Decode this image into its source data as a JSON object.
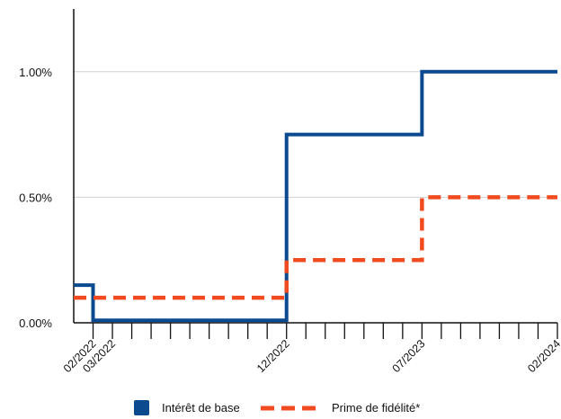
{
  "chart_data": {
    "type": "line",
    "step": true,
    "title": "",
    "xlabel": "",
    "ylabel": "",
    "x_unit": "month",
    "x_range": [
      "2022-01",
      "2024-02"
    ],
    "ylim": [
      0,
      0.0125
    ],
    "y_ticks": [
      {
        "value": 0,
        "label": "0.00%"
      },
      {
        "value": 0.005,
        "label": "0.50%"
      },
      {
        "value": 0.01,
        "label": "1.00%"
      }
    ],
    "x_tick_labels": [
      {
        "x": "2022-02",
        "label": "02/2022"
      },
      {
        "x": "2022-03",
        "label": "03/2022"
      },
      {
        "x": "2022-12",
        "label": "12/2022"
      },
      {
        "x": "2023-07",
        "label": "07/2023"
      },
      {
        "x": "2024-02",
        "label": "02/2024"
      }
    ],
    "grid": {
      "horizontal": true,
      "vertical": false
    },
    "legend_position": "bottom",
    "series": [
      {
        "name": "Intérêt de base",
        "color": "#0b4a8f",
        "style": "solid",
        "steps": [
          {
            "from": "2022-01",
            "value": 0.0015
          },
          {
            "from": "2022-02",
            "value": 0.0001
          },
          {
            "from": "2022-12",
            "value": 0.0075
          },
          {
            "from": "2023-07",
            "value": 0.01
          }
        ],
        "end": "2024-02"
      },
      {
        "name": "Prime de fidélité*",
        "color": "#f04a1e",
        "style": "dashed",
        "steps": [
          {
            "from": "2022-01",
            "value": 0.001
          },
          {
            "from": "2022-12",
            "value": 0.0025
          },
          {
            "from": "2023-07",
            "value": 0.005
          }
        ],
        "end": "2024-02"
      }
    ]
  }
}
